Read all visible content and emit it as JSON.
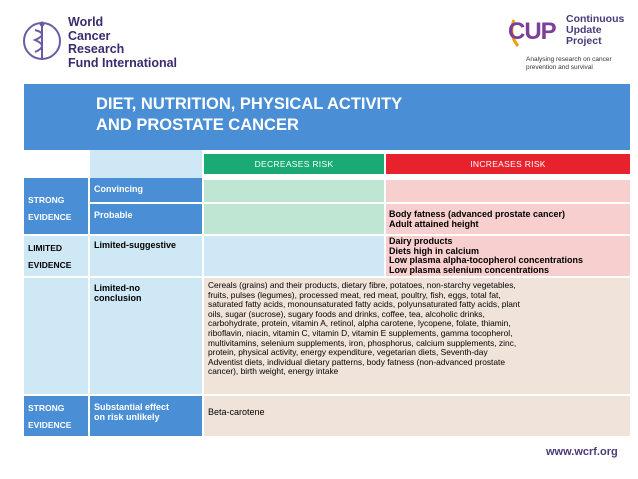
{
  "wcrf": {
    "name_lines": [
      "World",
      "Cancer",
      "Research",
      "Fund International"
    ]
  },
  "cup": {
    "mark": "CUP",
    "words": [
      "Continuous",
      "Update",
      "Project"
    ],
    "tagline": "Analysing research on cancer prevention and survival"
  },
  "title": {
    "line1": "DIET, NUTRITION, PHYSICAL ACTIVITY",
    "line2": "AND PROSTATE CANCER"
  },
  "headers": {
    "decreases": "DECREASES RISK",
    "increases": "INCREASES RISK"
  },
  "evidence": {
    "strong": [
      "STRONG",
      "EVIDENCE"
    ],
    "limited": [
      "LIMITED",
      "EVIDENCE"
    ],
    "strong2": [
      "STRONG",
      "EVIDENCE"
    ]
  },
  "categories": {
    "convincing": "Convincing",
    "probable": "Probable",
    "limited_suggestive": "Limited-suggestive",
    "limited_no": [
      "Limited-no",
      "conclusion"
    ],
    "substantial": [
      "Substantial effect",
      "on risk unlikely"
    ]
  },
  "increases": {
    "probable": [
      "Body fatness (advanced prostate cancer)",
      "Adult attained height"
    ],
    "limited_suggestive": [
      "Dairy products",
      "Diets high in calcium",
      "Low plasma alpha-tocopherol concentrations",
      "Low plasma selenium concentrations"
    ]
  },
  "limited_no_text": [
    "Cereals (grains) and their products, dietary fibre, potatoes, non-starchy vegetables,",
    "fruits, pulses (legumes), processed meat, red meat, poultry, fish, eggs, total fat,",
    "saturated fatty acids, monounsaturated fatty acids, polyunsaturated fatty acids, plant",
    "oils, sugar (sucrose), sugary foods and drinks, coffee, tea, alcoholic drinks,",
    "carbohydrate, protein, vitamin A, retinol, alpha carotene, lycopene, folate, thiamin,",
    "riboflavin, niacin, vitamin C, vitamin D, vitamin E supplements, gamma tocopherol,",
    "multivitamins, selenium supplements, iron, phosphorus, calcium supplements, zinc,",
    "protein, physical activity, energy expenditure, vegetarian diets, Seventh-day",
    "Adventist diets, individual dietary patterns, body fatness (non-advanced prostate",
    "cancer), birth weight, energy intake"
  ],
  "substantial_text": "Beta-carotene",
  "footer": {
    "url": "www.wcrf.org"
  }
}
